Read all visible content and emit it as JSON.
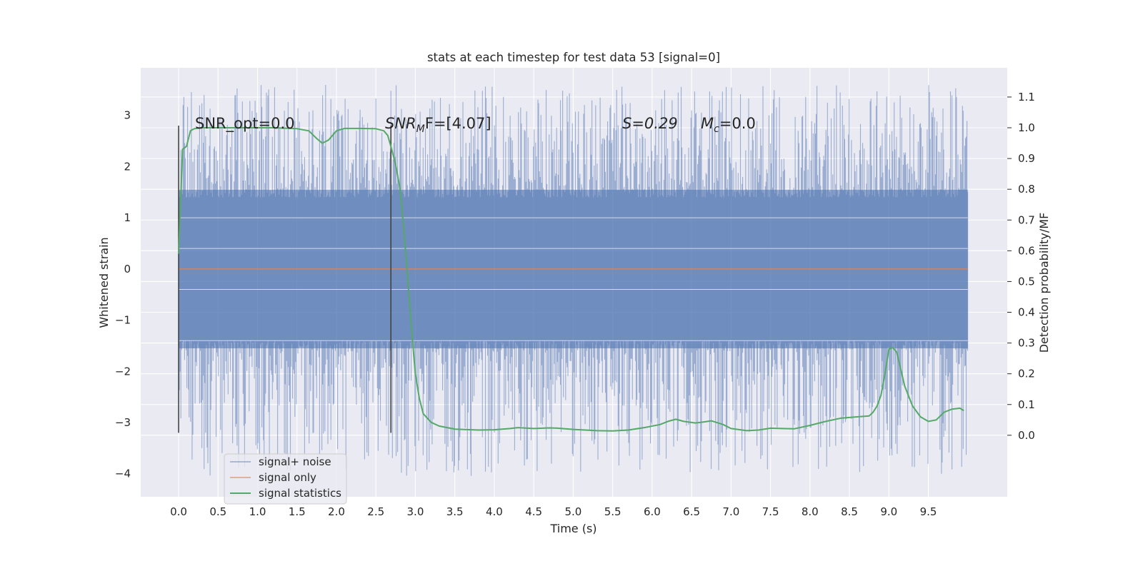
{
  "chart_data": {
    "type": "line",
    "title": "stats at each timestep for test data 53 [signal=0]",
    "xlabel": "Time (s)",
    "ylabel": "Whitened strain",
    "ylabel_right": "Detection probability/MF",
    "xlim": [
      -0.48,
      10.5
    ],
    "ylim": [
      -4.45,
      3.93
    ],
    "ylim_right": [
      -0.2,
      1.195
    ],
    "xticks": [
      "0.0",
      "0.5",
      "1.0",
      "1.5",
      "2.0",
      "2.5",
      "3.0",
      "3.5",
      "4.0",
      "4.5",
      "5.0",
      "5.5",
      "6.0",
      "6.5",
      "7.0",
      "7.5",
      "8.0",
      "8.5",
      "9.0",
      "9.5"
    ],
    "yticks_left": [
      "3",
      "2",
      "1",
      "0",
      "−1",
      "−2",
      "−3",
      "−4"
    ],
    "yticks_right": [
      "1.1",
      "1.0",
      "0.9",
      "0.8",
      "0.7",
      "0.6",
      "0.5",
      "0.4",
      "0.3",
      "0.2",
      "0.1",
      "0.0"
    ],
    "grid": true,
    "legend_location": "lower-left",
    "colors": {
      "background": "#eaeaf2",
      "grid": "#ffffff",
      "noise": "#4c72b0",
      "signal": "#dd8452",
      "statistics": "#55a868",
      "markers": "#444444"
    },
    "annotations": {
      "snr_opt": "SNR_opt=0.0",
      "snr_mf_main": "SNR",
      "snr_mf_sub": "M",
      "snr_mf_rest": "F=[4.07]",
      "s_label": "S=0.29",
      "mc_main": "M",
      "mc_sub": "c",
      "mc_rest": "=0.0"
    },
    "vertical_markers": [
      0.0,
      2.69
    ],
    "noise_band": {
      "x_range": [
        0.0,
        10.0
      ],
      "core_half_width": 1.55,
      "max_spike": 3.6,
      "min_spike": -4.05
    },
    "series": [
      {
        "name": "signal+ noise",
        "axis": "left",
        "style": "dense-noise",
        "x": [
          0.0,
          10.0
        ]
      },
      {
        "name": "signal only",
        "axis": "left",
        "x": [
          0.0,
          10.0
        ],
        "values": [
          0.0,
          0.0
        ]
      },
      {
        "name": "signal statistics",
        "axis": "right",
        "x": [
          0.0,
          0.05,
          0.1,
          0.15,
          0.2,
          0.3,
          0.5,
          0.8,
          1.2,
          1.5,
          1.65,
          1.75,
          1.82,
          1.9,
          2.0,
          2.1,
          2.3,
          2.5,
          2.6,
          2.65,
          2.7,
          2.75,
          2.8,
          2.85,
          2.9,
          2.95,
          3.0,
          3.05,
          3.1,
          3.2,
          3.3,
          3.5,
          3.8,
          4.0,
          4.2,
          4.3,
          4.5,
          4.7,
          4.8,
          5.0,
          5.3,
          5.5,
          5.7,
          5.9,
          6.1,
          6.2,
          6.3,
          6.4,
          6.55,
          6.65,
          6.75,
          6.9,
          7.0,
          7.2,
          7.35,
          7.5,
          7.65,
          7.8,
          8.0,
          8.2,
          8.4,
          8.6,
          8.75,
          8.8,
          8.85,
          8.9,
          8.95,
          9.0,
          9.05,
          9.1,
          9.2,
          9.3,
          9.4,
          9.5,
          9.6,
          9.7,
          9.8,
          9.9,
          9.95
        ],
        "values": [
          0.59,
          0.93,
          0.94,
          0.99,
          0.997,
          1.0,
          1.0,
          1.0,
          1.0,
          0.997,
          0.99,
          0.965,
          0.95,
          0.96,
          0.99,
          0.998,
          0.998,
          0.997,
          0.99,
          0.975,
          0.93,
          0.88,
          0.81,
          0.68,
          0.52,
          0.35,
          0.2,
          0.12,
          0.07,
          0.042,
          0.03,
          0.02,
          0.017,
          0.018,
          0.022,
          0.025,
          0.022,
          0.024,
          0.023,
          0.019,
          0.015,
          0.014,
          0.017,
          0.025,
          0.035,
          0.045,
          0.052,
          0.045,
          0.04,
          0.043,
          0.047,
          0.035,
          0.022,
          0.015,
          0.017,
          0.023,
          0.022,
          0.021,
          0.032,
          0.045,
          0.056,
          0.06,
          0.063,
          0.075,
          0.095,
          0.13,
          0.2,
          0.28,
          0.285,
          0.27,
          0.16,
          0.095,
          0.06,
          0.045,
          0.05,
          0.075,
          0.085,
          0.088,
          0.08
        ]
      }
    ]
  }
}
